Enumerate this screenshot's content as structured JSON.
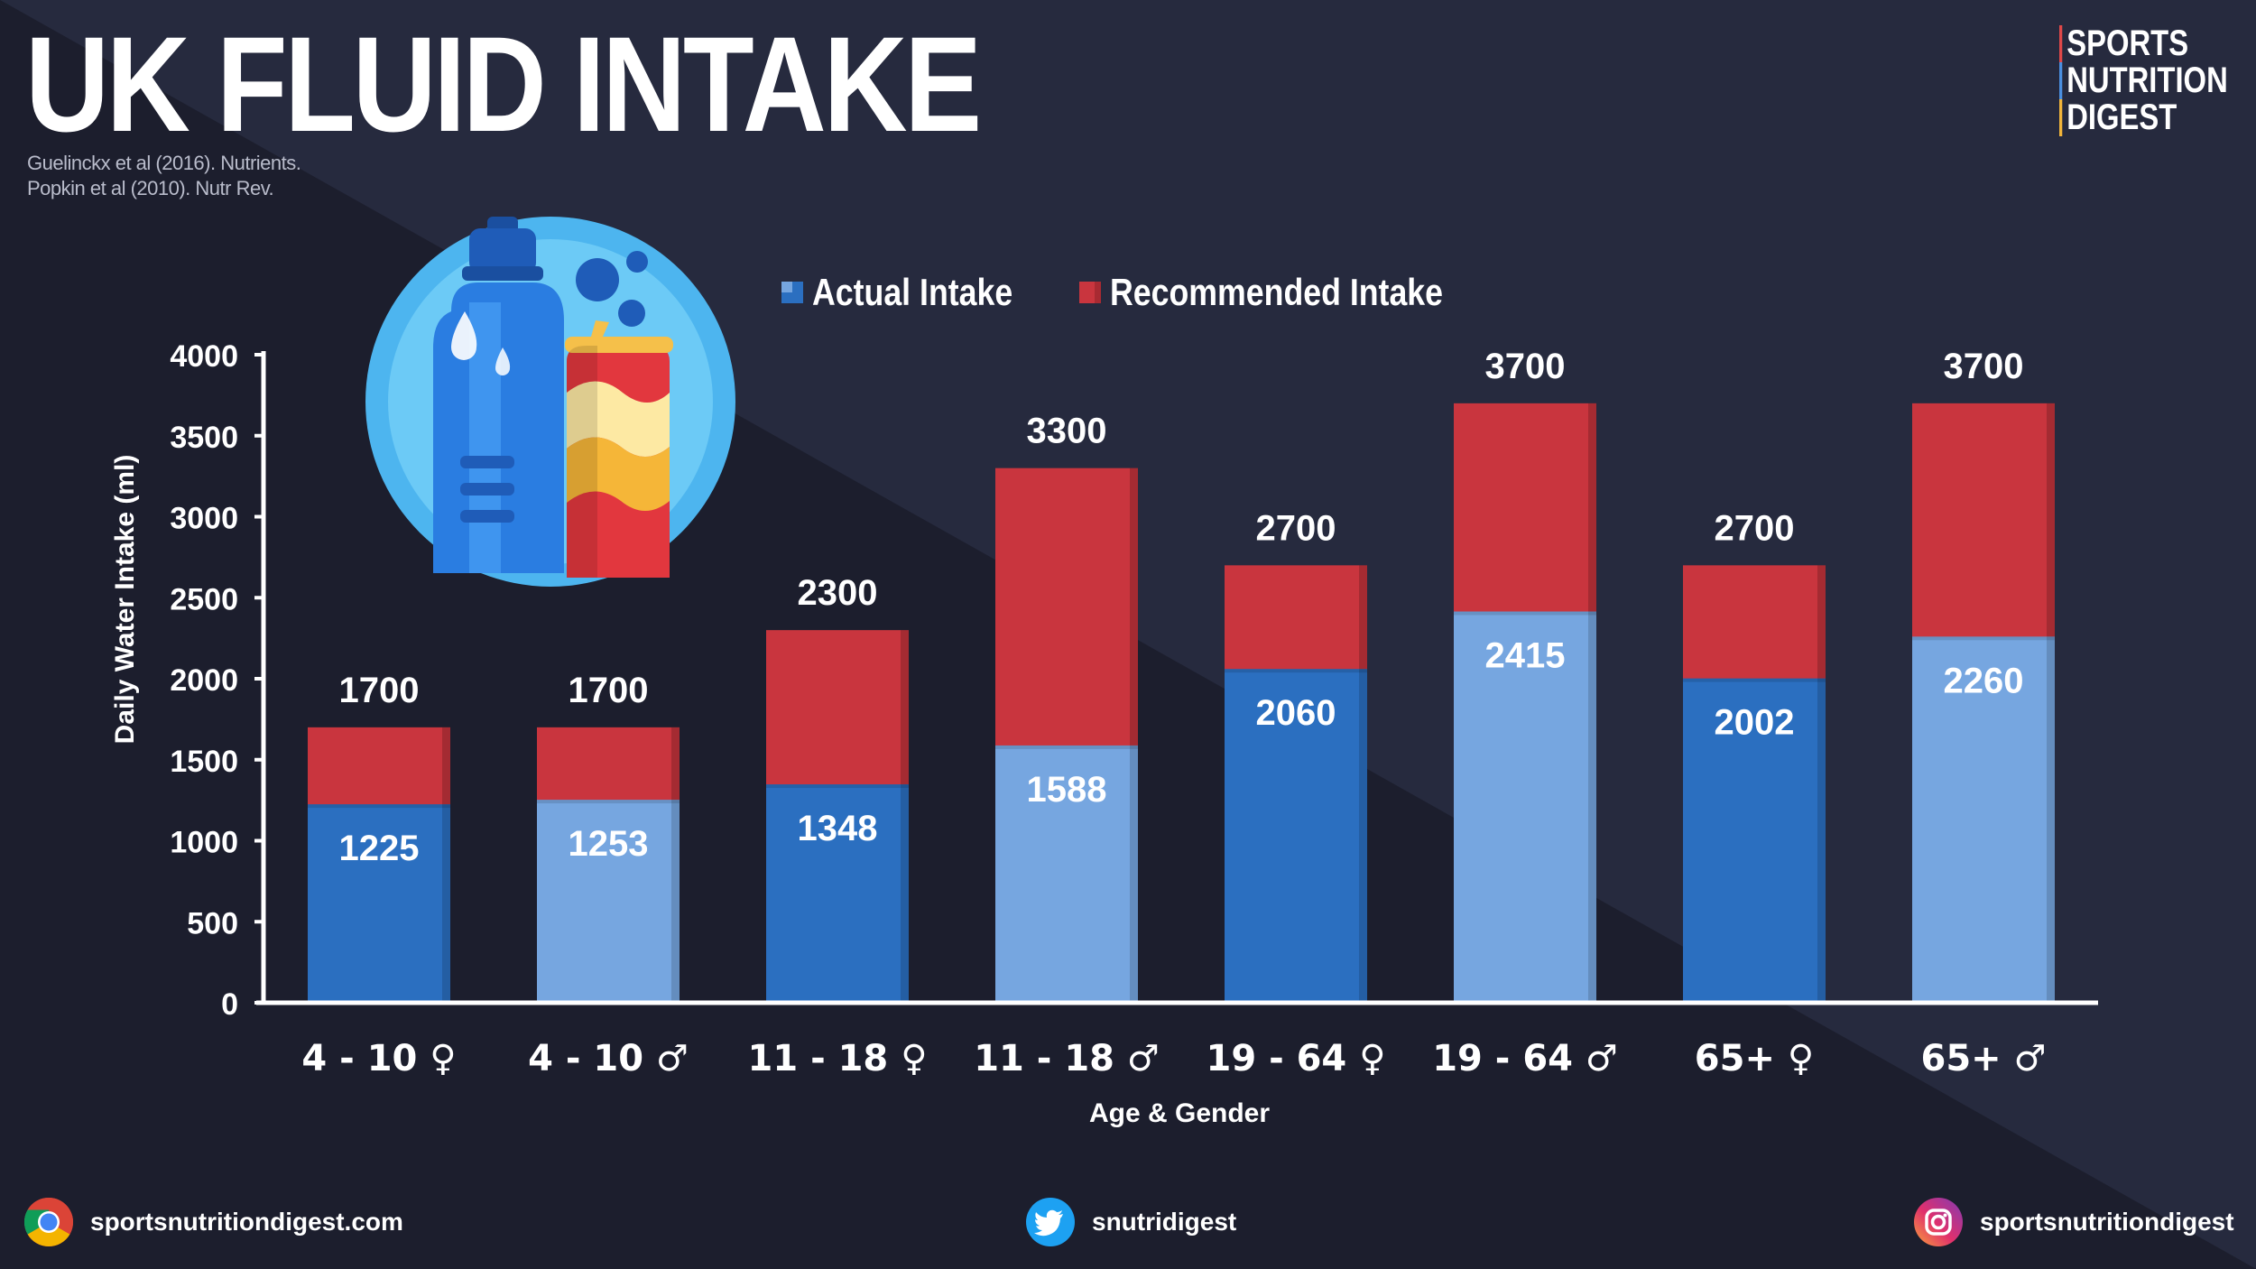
{
  "header": {
    "title": "UK FLUID INTAKE",
    "sources": [
      "Guelinckx et al (2016). Nutrients.",
      "Popkin et al (2010). Nutr Rev."
    ]
  },
  "logo": {
    "lines": [
      "SPORTS",
      "NUTRITION",
      "DIGEST"
    ]
  },
  "legend": {
    "actual_label": "Actual Intake",
    "recommended_label": "Recommended Intake"
  },
  "footer": {
    "website": "sportsnutritiondigest.com",
    "twitter": "snutridigest",
    "instagram": "sportsnutritiondigest"
  },
  "colors": {
    "background": "#232638",
    "background_dark": "#1b1d2c",
    "actual_dark": "#2b6fc0",
    "actual_light": "#76a6e0",
    "recommended": "#c9353e"
  },
  "chart_data": {
    "type": "bar",
    "stacked": "overlay",
    "categories": [
      "4 - 10 ♀",
      "4 - 10 ♂",
      "11 - 18 ♀",
      "11 - 18 ♂",
      "19 - 64 ♀",
      "19 - 64 ♂",
      "65+ ♀",
      "65+ ♂"
    ],
    "series": [
      {
        "name": "Actual Intake",
        "values": [
          1225,
          1253,
          1348,
          1588,
          2060,
          2415,
          2002,
          2260
        ]
      },
      {
        "name": "Recommended Intake",
        "values": [
          1700,
          1700,
          2300,
          3300,
          2700,
          3700,
          2700,
          3700
        ]
      }
    ],
    "xlabel": "Age & Gender",
    "ylabel": "Daily Water Intake (ml)",
    "ylim": [
      0,
      4000
    ],
    "yticks": [
      0,
      500,
      1000,
      1500,
      2000,
      2500,
      3000,
      3500,
      4000
    ],
    "legend_position": "top-center",
    "grid": false
  }
}
